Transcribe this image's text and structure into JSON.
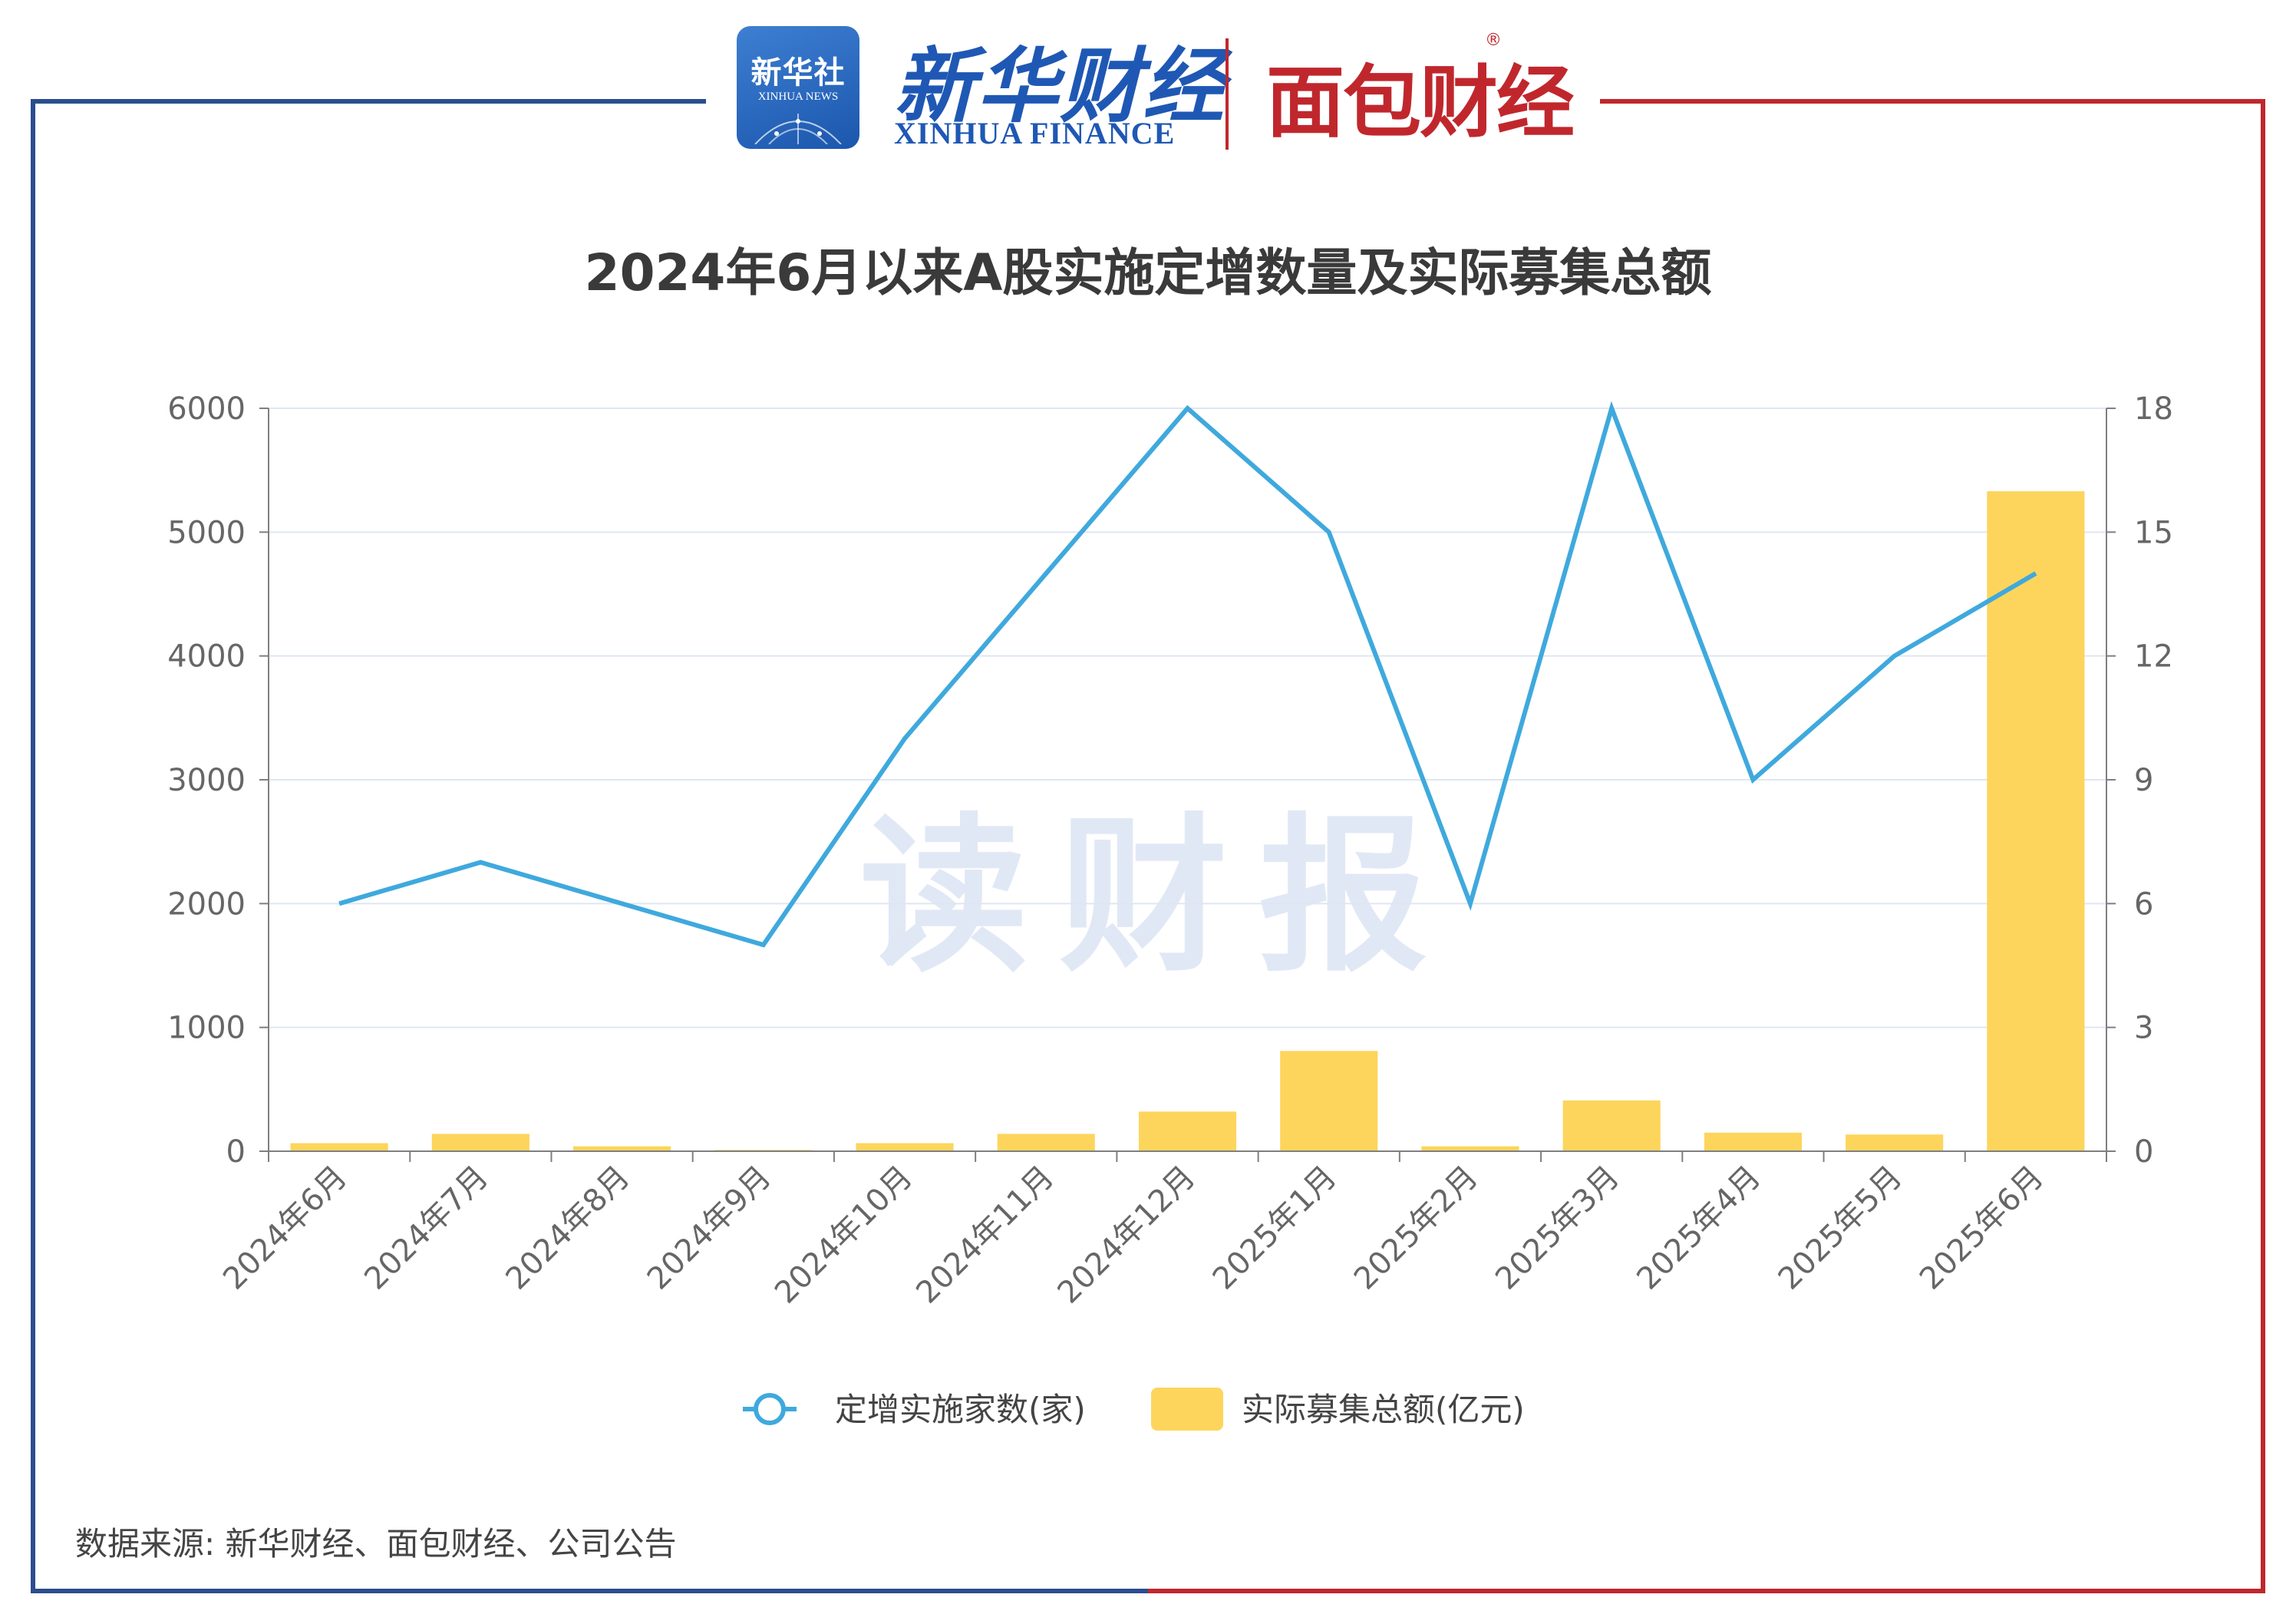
{
  "header": {
    "xinhua_badge_cn": "新华社",
    "xinhua_badge_en": "XINHUA NEWS",
    "xinhua_finance_cn": "新华财经",
    "xinhua_finance_en": "XINHUA FINANCE",
    "mianbao_logo": "面包财经",
    "mianbao_reg": "®"
  },
  "watermark": "读财报",
  "source": "数据来源: 新华财经、面包财经、公司公告",
  "colors": {
    "line": "#3fa9dd",
    "bar": "#fdd55c",
    "grid": "#dfe6f3",
    "axis": "#7f7f7f",
    "frame_left": "#2b4d8f",
    "frame_right": "#c0272d"
  },
  "chart_data": {
    "type": "bar+line",
    "title": "2024年6月以来A股实施定增数量及实际募集总额",
    "categories": [
      "2024年6月",
      "2024年7月",
      "2024年8月",
      "2024年9月",
      "2024年10月",
      "2024年11月",
      "2024年12月",
      "2025年1月",
      "2025年2月",
      "2025年3月",
      "2025年4月",
      "2025年5月",
      "2025年6月"
    ],
    "series": [
      {
        "name": "定增实施家数(家)",
        "type": "line",
        "axis": "right",
        "values": [
          6,
          7,
          6,
          5,
          10,
          14,
          18,
          15,
          6,
          18,
          9,
          12,
          14
        ]
      },
      {
        "name": "实际募集总额(亿元)",
        "type": "bar",
        "axis": "left",
        "values": [
          65,
          140,
          40,
          10,
          65,
          140,
          320,
          810,
          40,
          410,
          150,
          135,
          5330
        ]
      }
    ],
    "y_left": {
      "min": 0,
      "max": 6000,
      "ticks": [
        "0",
        "1000",
        "2000",
        "3000",
        "4000",
        "5000",
        "6000"
      ]
    },
    "y_right": {
      "min": 0,
      "max": 18,
      "ticks": [
        "0",
        "3",
        "6",
        "9",
        "12",
        "15",
        "18"
      ]
    },
    "legend": {
      "position": "bottom"
    },
    "grid": true
  }
}
